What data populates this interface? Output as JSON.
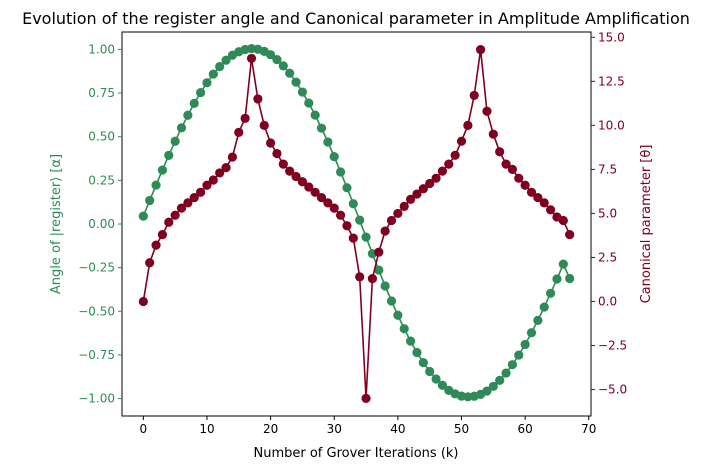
{
  "chart_data": {
    "type": "line",
    "title": "Evolution of the register angle and Canonical parameter in Amplitude Amplification",
    "xlabel": "Number of Grover Iterations (k)",
    "ylabel_left": "Angle of |register⟩ [α]",
    "ylabel_right": "Canonical parameter [θ]",
    "xlim": [
      -3.35,
      70.35
    ],
    "ylim_left": [
      -1.1,
      1.1
    ],
    "ylim_right": [
      -6.5,
      15.3
    ],
    "x_ticks": [
      0,
      10,
      20,
      30,
      40,
      50,
      60,
      70
    ],
    "y_ticks_left": [
      -1.0,
      -0.75,
      -0.5,
      -0.25,
      0.0,
      0.25,
      0.5,
      0.75,
      1.0
    ],
    "y_ticks_right": [
      -5.0,
      -2.5,
      0.0,
      2.5,
      5.0,
      7.5,
      10.0,
      12.5,
      15.0
    ],
    "grid": false,
    "legend": "none",
    "x": [
      0,
      1,
      2,
      3,
      4,
      5,
      6,
      7,
      8,
      9,
      10,
      11,
      12,
      13,
      14,
      15,
      16,
      17,
      18,
      19,
      20,
      21,
      22,
      23,
      24,
      25,
      26,
      27,
      28,
      29,
      30,
      31,
      32,
      33,
      34,
      35,
      36,
      37,
      38,
      39,
      40,
      41,
      42,
      43,
      44,
      45,
      46,
      47,
      48,
      49,
      50,
      51,
      52,
      53,
      54,
      55,
      56,
      57,
      58,
      59,
      60,
      61,
      62,
      63,
      64,
      65,
      66,
      67
    ],
    "series": [
      {
        "axis": "left",
        "color": "#2e8b57",
        "values": [
          0.045,
          0.135,
          0.223,
          0.309,
          0.393,
          0.474,
          0.551,
          0.623,
          0.691,
          0.753,
          0.809,
          0.859,
          0.902,
          0.938,
          0.967,
          0.987,
          1.0,
          1.005,
          1.001,
          0.989,
          0.97,
          0.942,
          0.906,
          0.864,
          0.813,
          0.756,
          0.693,
          0.624,
          0.549,
          0.47,
          0.386,
          0.298,
          0.208,
          0.116,
          0.022,
          -0.075,
          -0.17,
          -0.264,
          -0.355,
          -0.441,
          -0.523,
          -0.6,
          -0.671,
          -0.736,
          -0.794,
          -0.845,
          -0.888,
          -0.924,
          -0.953,
          -0.973,
          -0.986,
          -0.99,
          -0.987,
          -0.976,
          -0.957,
          -0.93,
          -0.896,
          -0.854,
          -0.806,
          -0.751,
          -0.69,
          -0.623,
          -0.552,
          -0.476,
          -0.397,
          -0.315,
          -0.23,
          -0.312
        ]
      },
      {
        "axis": "right",
        "color": "#800020",
        "values": [
          0.0,
          2.2,
          3.2,
          3.8,
          4.5,
          4.9,
          5.3,
          5.6,
          5.9,
          6.2,
          6.6,
          6.9,
          7.3,
          7.6,
          8.2,
          9.6,
          10.4,
          13.8,
          11.5,
          10.0,
          9.0,
          8.4,
          7.8,
          7.4,
          7.1,
          6.8,
          6.5,
          6.2,
          5.9,
          5.6,
          5.3,
          4.9,
          4.3,
          3.6,
          1.4,
          -5.5,
          1.3,
          2.8,
          4.0,
          4.6,
          5.0,
          5.4,
          5.8,
          6.1,
          6.4,
          6.7,
          7.0,
          7.4,
          7.8,
          8.3,
          9.1,
          10.0,
          11.7,
          14.3,
          10.8,
          9.5,
          8.5,
          7.8,
          7.5,
          7.0,
          6.6,
          6.2,
          5.9,
          5.6,
          5.2,
          4.8,
          4.6,
          3.8
        ]
      }
    ]
  }
}
